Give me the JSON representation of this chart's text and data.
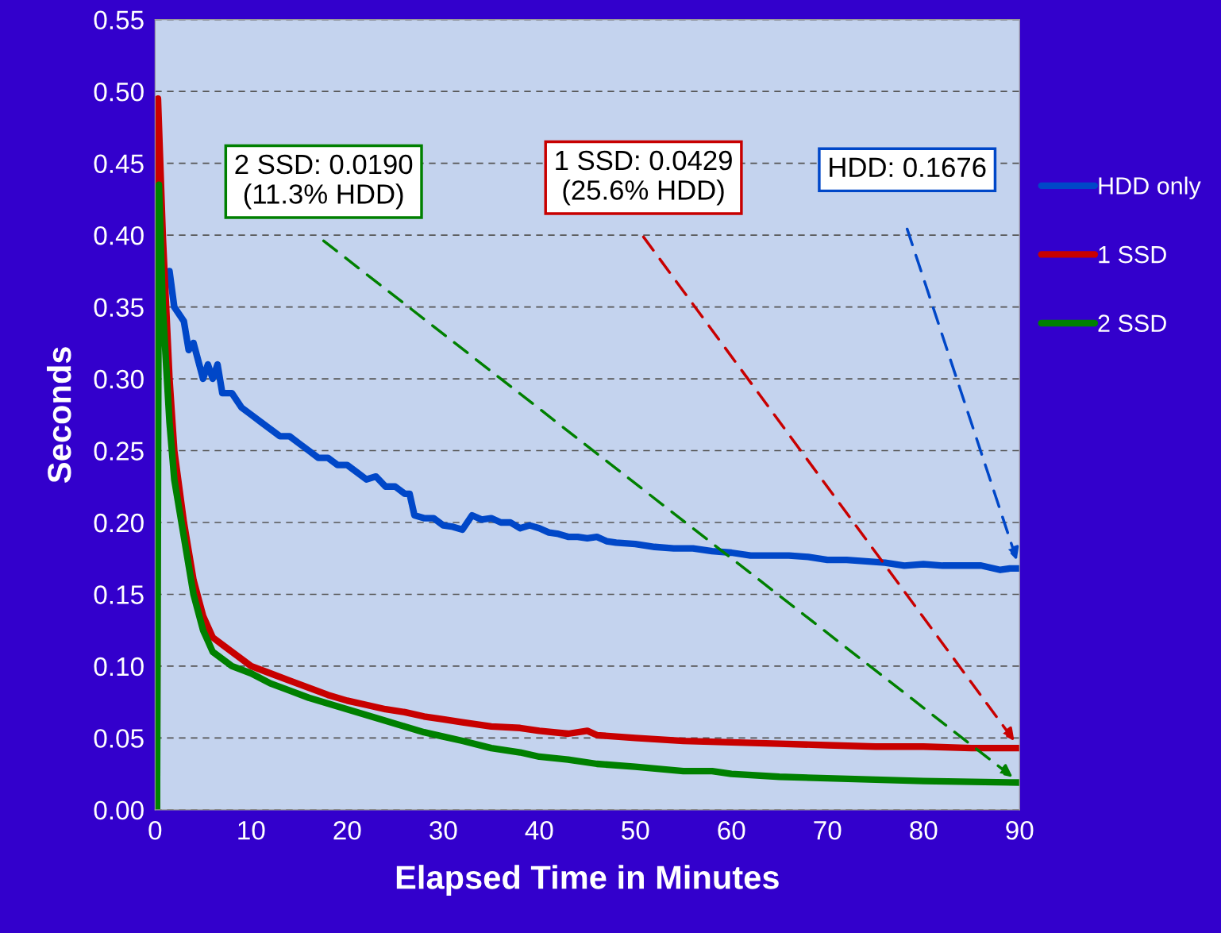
{
  "chart_data": {
    "type": "line",
    "xlabel": "Elapsed Time in Minutes",
    "ylabel": "Seconds",
    "xlim": [
      0,
      90
    ],
    "xticks": [
      0,
      10,
      20,
      30,
      40,
      50,
      60,
      70,
      80,
      90
    ],
    "ylim": [
      0,
      0.55
    ],
    "yticks": [
      {
        "value": 0,
        "label": "0.00"
      },
      {
        "value": 0.05,
        "label": "0.05"
      },
      {
        "value": 0.1,
        "label": "0.10"
      },
      {
        "value": 0.15,
        "label": "0.15"
      },
      {
        "value": 0.2,
        "label": "0.20"
      },
      {
        "value": 0.25,
        "label": "0.25"
      },
      {
        "value": 0.3,
        "label": "0.30"
      },
      {
        "value": 0.35,
        "label": "0.35"
      },
      {
        "value": 0.4,
        "label": "0.40"
      },
      {
        "value": 0.45,
        "label": "0.45"
      },
      {
        "value": 0.5,
        "label": "0.50"
      },
      {
        "value": 0.55,
        "label": "0.55"
      }
    ],
    "grid": "y",
    "legend": "right",
    "marker": "none",
    "line_style": "solid",
    "series": [
      {
        "name": "HDD only",
        "color": "#0047c8",
        "x": [
          0.5,
          1,
          1.5,
          2,
          3,
          3.5,
          4,
          5,
          5.5,
          6,
          6.5,
          7,
          8,
          9,
          10,
          11,
          12,
          13,
          14,
          15,
          16,
          17,
          18,
          19,
          20,
          21,
          22,
          23,
          24,
          25,
          26,
          26.5,
          27,
          28,
          29,
          30,
          31,
          32,
          33,
          34,
          35,
          36,
          37,
          38,
          39,
          40,
          41,
          42,
          43,
          44,
          45,
          46,
          47,
          48,
          50,
          52,
          54,
          56,
          58,
          60,
          62,
          64,
          66,
          68,
          70,
          72,
          74,
          76,
          78,
          80,
          82,
          84,
          86,
          88,
          89,
          90
        ],
        "values": [
          0.4,
          0.37,
          0.375,
          0.35,
          0.34,
          0.32,
          0.325,
          0.3,
          0.31,
          0.3,
          0.31,
          0.29,
          0.29,
          0.28,
          0.275,
          0.27,
          0.265,
          0.26,
          0.26,
          0.255,
          0.25,
          0.245,
          0.245,
          0.24,
          0.24,
          0.235,
          0.23,
          0.232,
          0.225,
          0.225,
          0.22,
          0.22,
          0.205,
          0.203,
          0.203,
          0.198,
          0.197,
          0.195,
          0.205,
          0.202,
          0.203,
          0.2,
          0.2,
          0.196,
          0.198,
          0.196,
          0.193,
          0.192,
          0.19,
          0.19,
          0.189,
          0.19,
          0.187,
          0.186,
          0.185,
          0.183,
          0.182,
          0.182,
          0.18,
          0.179,
          0.177,
          0.177,
          0.177,
          0.176,
          0.174,
          0.174,
          0.173,
          0.172,
          0.17,
          0.171,
          0.17,
          0.17,
          0.17,
          0.167,
          0.168,
          0.168
        ]
      },
      {
        "name": "1 SSD",
        "color": "#c80000",
        "x": [
          0.2,
          0.3,
          0.8,
          1.5,
          2,
          3,
          4,
          5,
          6,
          7,
          8,
          9,
          10,
          12,
          14,
          16,
          18,
          20,
          22,
          24,
          26,
          28,
          30,
          32,
          35,
          38,
          40,
          43,
          45,
          46,
          50,
          55,
          60,
          65,
          70,
          75,
          80,
          85,
          90
        ],
        "values": [
          0,
          0.495,
          0.4,
          0.3,
          0.25,
          0.2,
          0.16,
          0.135,
          0.12,
          0.115,
          0.11,
          0.105,
          0.1,
          0.095,
          0.09,
          0.085,
          0.08,
          0.076,
          0.073,
          0.07,
          0.068,
          0.065,
          0.063,
          0.061,
          0.058,
          0.057,
          0.055,
          0.053,
          0.055,
          0.052,
          0.05,
          0.048,
          0.047,
          0.046,
          0.045,
          0.044,
          0.044,
          0.043,
          0.043
        ]
      },
      {
        "name": "2 SSD",
        "color": "#008000",
        "x": [
          0.2,
          0.4,
          0.8,
          1.5,
          2,
          3,
          4,
          5,
          6,
          7,
          8,
          10,
          12,
          14,
          16,
          18,
          20,
          22,
          24,
          26,
          28,
          30,
          32,
          35,
          38,
          40,
          43,
          46,
          50,
          55,
          58,
          60,
          65,
          70,
          75,
          80,
          85,
          90
        ],
        "values": [
          0,
          0.435,
          0.35,
          0.27,
          0.23,
          0.19,
          0.15,
          0.125,
          0.11,
          0.105,
          0.1,
          0.095,
          0.088,
          0.083,
          0.078,
          0.074,
          0.07,
          0.066,
          0.062,
          0.058,
          0.054,
          0.051,
          0.048,
          0.043,
          0.04,
          0.037,
          0.035,
          0.032,
          0.03,
          0.027,
          0.027,
          0.025,
          0.023,
          0.022,
          0.021,
          0.02,
          0.0195,
          0.019
        ]
      }
    ],
    "annotations": [
      "2 SSD: 0.0190\n(11.3% HDD)",
      "1 SSD: 0.0429\n(25.6% HDD)",
      "HDD: 0.1676"
    ]
  }
}
